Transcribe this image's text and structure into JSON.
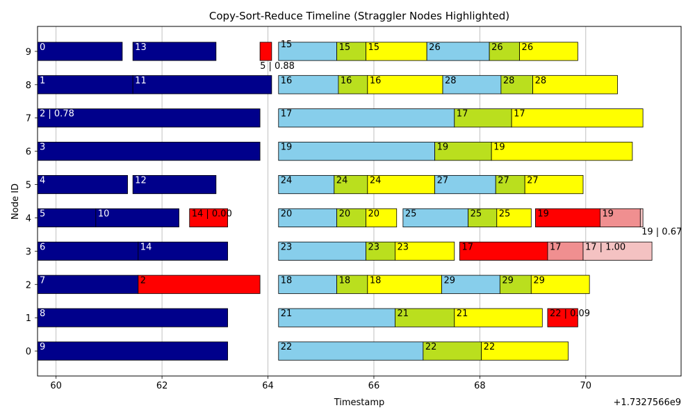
{
  "chart_data": {
    "type": "gantt",
    "title": "Copy-Sort-Reduce Timeline (Straggler Nodes Highlighted)",
    "xlabel": "Timestamp",
    "ylabel": "Node ID",
    "offset_label": "+1.7327566e9",
    "xlim": [
      59.65,
      71.8
    ],
    "ylim": [
      -0.75,
      9.75
    ],
    "xticks": [
      60,
      62,
      64,
      66,
      68,
      70
    ],
    "yticks": [
      0,
      1,
      2,
      3,
      4,
      5,
      6,
      7,
      8,
      9
    ],
    "straggler_nodes": [
      0,
      1,
      6,
      7
    ],
    "grid": "x",
    "colors": {
      "map": "#00008B",
      "straggler": "#FF0000",
      "copy": "#87CEEB",
      "sort": "#BADF1E",
      "reduce": "#FFFF00",
      "straggler_sort": "#F08F90",
      "straggler_reduce": "#F4C2C2"
    },
    "bars": [
      {
        "node": 9,
        "start": 59.65,
        "end": 61.25,
        "phase": "map",
        "label": "0"
      },
      {
        "node": 9,
        "start": 61.45,
        "end": 63.02,
        "phase": "map",
        "label": "13"
      },
      {
        "node": 9,
        "start": 63.85,
        "end": 64.07,
        "phase": "straggler",
        "label": "5 | 0.88",
        "label_below": true
      },
      {
        "node": 9,
        "start": 64.2,
        "end": 65.3,
        "phase": "copy",
        "label": "15",
        "label_raised": true
      },
      {
        "node": 9,
        "start": 65.3,
        "end": 65.85,
        "phase": "sort",
        "label": "15"
      },
      {
        "node": 9,
        "start": 65.85,
        "end": 67.0,
        "phase": "reduce",
        "label": "15"
      },
      {
        "node": 9,
        "start": 67.0,
        "end": 68.18,
        "phase": "copy",
        "label": "26"
      },
      {
        "node": 9,
        "start": 68.18,
        "end": 68.75,
        "phase": "sort",
        "label": "26"
      },
      {
        "node": 9,
        "start": 68.75,
        "end": 69.85,
        "phase": "reduce",
        "label": "26"
      },
      {
        "node": 8,
        "start": 59.65,
        "end": 61.45,
        "phase": "map",
        "label": "1"
      },
      {
        "node": 8,
        "start": 61.45,
        "end": 64.07,
        "phase": "map",
        "label": "11"
      },
      {
        "node": 8,
        "start": 64.2,
        "end": 65.33,
        "phase": "copy",
        "label": "16"
      },
      {
        "node": 8,
        "start": 65.33,
        "end": 65.88,
        "phase": "sort",
        "label": "16"
      },
      {
        "node": 8,
        "start": 65.88,
        "end": 67.3,
        "phase": "reduce",
        "label": "16"
      },
      {
        "node": 8,
        "start": 67.3,
        "end": 68.4,
        "phase": "copy",
        "label": "28"
      },
      {
        "node": 8,
        "start": 68.4,
        "end": 69.0,
        "phase": "sort",
        "label": "28"
      },
      {
        "node": 8,
        "start": 69.0,
        "end": 70.6,
        "phase": "reduce",
        "label": "28"
      },
      {
        "node": 7,
        "start": 59.65,
        "end": 63.85,
        "phase": "map",
        "label": "2 | 0.78"
      },
      {
        "node": 7,
        "start": 64.2,
        "end": 67.52,
        "phase": "copy",
        "label": "17"
      },
      {
        "node": 7,
        "start": 67.52,
        "end": 68.6,
        "phase": "sort",
        "label": "17"
      },
      {
        "node": 7,
        "start": 68.6,
        "end": 71.08,
        "phase": "reduce",
        "label": "17"
      },
      {
        "node": 6,
        "start": 59.65,
        "end": 63.85,
        "phase": "map",
        "label": "3"
      },
      {
        "node": 6,
        "start": 64.2,
        "end": 67.15,
        "phase": "copy",
        "label": "19"
      },
      {
        "node": 6,
        "start": 67.15,
        "end": 68.22,
        "phase": "sort",
        "label": "19"
      },
      {
        "node": 6,
        "start": 68.22,
        "end": 70.88,
        "phase": "reduce",
        "label": "19"
      },
      {
        "node": 5,
        "start": 59.65,
        "end": 61.35,
        "phase": "map",
        "label": "4"
      },
      {
        "node": 5,
        "start": 61.45,
        "end": 63.02,
        "phase": "map",
        "label": "12"
      },
      {
        "node": 5,
        "start": 64.2,
        "end": 65.25,
        "phase": "copy",
        "label": "24"
      },
      {
        "node": 5,
        "start": 65.25,
        "end": 65.88,
        "phase": "sort",
        "label": "24"
      },
      {
        "node": 5,
        "start": 65.88,
        "end": 67.15,
        "phase": "reduce",
        "label": "24"
      },
      {
        "node": 5,
        "start": 67.15,
        "end": 68.3,
        "phase": "copy",
        "label": "27"
      },
      {
        "node": 5,
        "start": 68.3,
        "end": 68.85,
        "phase": "sort",
        "label": "27"
      },
      {
        "node": 5,
        "start": 68.85,
        "end": 69.95,
        "phase": "reduce",
        "label": "27"
      },
      {
        "node": 4,
        "start": 59.65,
        "end": 60.75,
        "phase": "map",
        "label": "5"
      },
      {
        "node": 4,
        "start": 60.75,
        "end": 62.32,
        "phase": "map",
        "label": "10"
      },
      {
        "node": 4,
        "start": 62.52,
        "end": 63.24,
        "phase": "straggler",
        "label": "14 | 0.00"
      },
      {
        "node": 4,
        "start": 64.2,
        "end": 65.3,
        "phase": "copy",
        "label": "20"
      },
      {
        "node": 4,
        "start": 65.3,
        "end": 65.85,
        "phase": "sort",
        "label": "20"
      },
      {
        "node": 4,
        "start": 65.85,
        "end": 66.43,
        "phase": "reduce",
        "label": "20"
      },
      {
        "node": 4,
        "start": 66.55,
        "end": 67.78,
        "phase": "copy",
        "label": "25"
      },
      {
        "node": 4,
        "start": 67.78,
        "end": 68.32,
        "phase": "sort",
        "label": "25"
      },
      {
        "node": 4,
        "start": 68.32,
        "end": 68.97,
        "phase": "reduce",
        "label": "25"
      },
      {
        "node": 4,
        "start": 69.05,
        "end": 70.27,
        "phase": "straggler",
        "label": "19"
      },
      {
        "node": 4,
        "start": 70.27,
        "end": 71.03,
        "phase": "straggler_sort",
        "label": "19"
      },
      {
        "node": 4,
        "start": 71.03,
        "end": 71.08,
        "phase": "straggler_reduce",
        "label": "19 | 0.67",
        "label_below_right": true
      },
      {
        "node": 3,
        "start": 59.65,
        "end": 61.55,
        "phase": "map",
        "label": "6"
      },
      {
        "node": 3,
        "start": 61.55,
        "end": 63.24,
        "phase": "map",
        "label": "14"
      },
      {
        "node": 3,
        "start": 64.2,
        "end": 65.85,
        "phase": "copy",
        "label": "23"
      },
      {
        "node": 3,
        "start": 65.85,
        "end": 66.4,
        "phase": "sort",
        "label": "23"
      },
      {
        "node": 3,
        "start": 66.4,
        "end": 67.52,
        "phase": "reduce",
        "label": "23"
      },
      {
        "node": 3,
        "start": 67.62,
        "end": 69.28,
        "phase": "straggler",
        "label": "17"
      },
      {
        "node": 3,
        "start": 69.28,
        "end": 69.95,
        "phase": "straggler_sort",
        "label": "17"
      },
      {
        "node": 3,
        "start": 69.95,
        "end": 71.25,
        "phase": "straggler_reduce",
        "label": "17 | 1.00"
      },
      {
        "node": 2,
        "start": 59.65,
        "end": 61.55,
        "phase": "map",
        "label": "7"
      },
      {
        "node": 2,
        "start": 61.55,
        "end": 63.85,
        "phase": "straggler",
        "label": "2"
      },
      {
        "node": 2,
        "start": 64.2,
        "end": 65.3,
        "phase": "copy",
        "label": "18"
      },
      {
        "node": 2,
        "start": 65.3,
        "end": 65.88,
        "phase": "sort",
        "label": "18"
      },
      {
        "node": 2,
        "start": 65.88,
        "end": 67.28,
        "phase": "reduce",
        "label": "18"
      },
      {
        "node": 2,
        "start": 67.28,
        "end": 68.38,
        "phase": "copy",
        "label": "29"
      },
      {
        "node": 2,
        "start": 68.38,
        "end": 68.97,
        "phase": "sort",
        "label": "29"
      },
      {
        "node": 2,
        "start": 68.97,
        "end": 70.07,
        "phase": "reduce",
        "label": "29"
      },
      {
        "node": 1,
        "start": 59.65,
        "end": 63.24,
        "phase": "map",
        "label": "8"
      },
      {
        "node": 1,
        "start": 64.2,
        "end": 66.4,
        "phase": "copy",
        "label": "21"
      },
      {
        "node": 1,
        "start": 66.4,
        "end": 67.52,
        "phase": "sort",
        "label": "21"
      },
      {
        "node": 1,
        "start": 67.52,
        "end": 69.18,
        "phase": "reduce",
        "label": "21"
      },
      {
        "node": 1,
        "start": 69.28,
        "end": 69.85,
        "phase": "straggler",
        "label": "22 | 0.09"
      },
      {
        "node": 0,
        "start": 59.65,
        "end": 63.24,
        "phase": "map",
        "label": "9"
      },
      {
        "node": 0,
        "start": 64.2,
        "end": 66.93,
        "phase": "copy",
        "label": "22"
      },
      {
        "node": 0,
        "start": 66.93,
        "end": 68.03,
        "phase": "sort",
        "label": "22"
      },
      {
        "node": 0,
        "start": 68.03,
        "end": 69.67,
        "phase": "reduce",
        "label": "22"
      }
    ]
  }
}
